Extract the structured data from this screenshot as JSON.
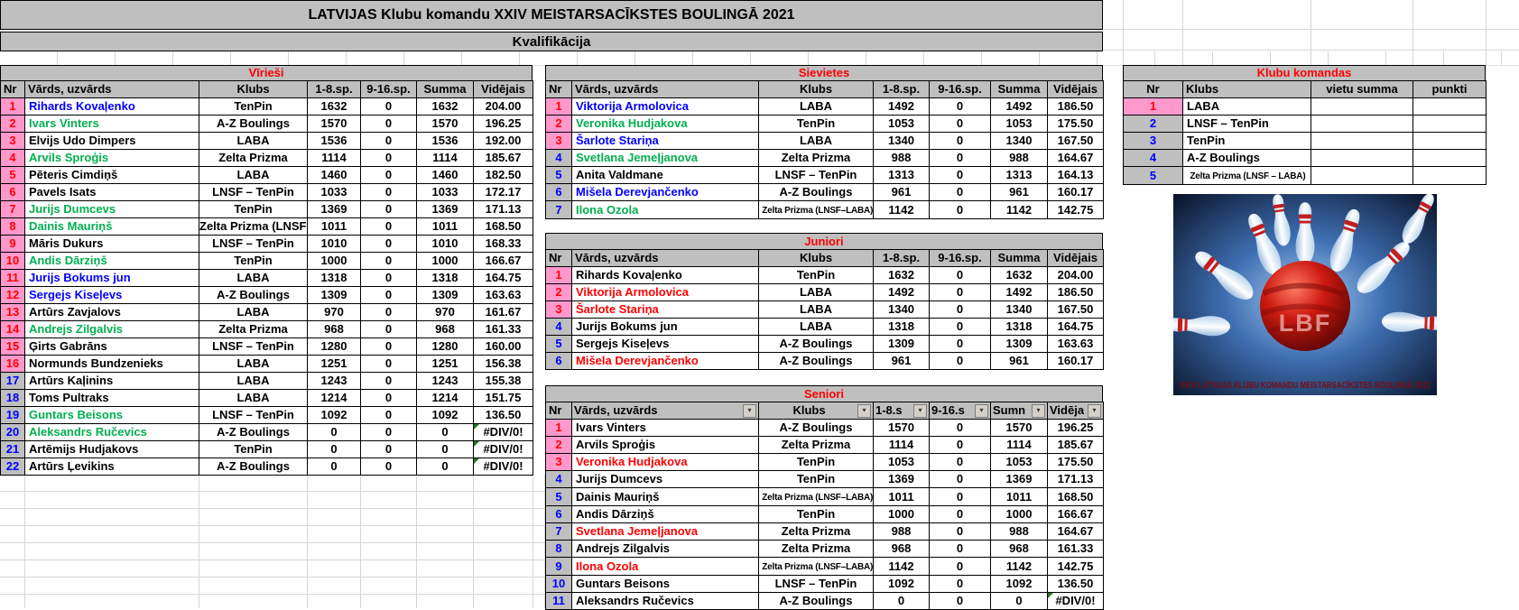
{
  "title1": "LATVIJAS Klubu komandu XXIV MEISTARSACĪKSTES BOULINGĀ 2021",
  "title2": "Kvalifikācija",
  "error_value": "#DIV/0!",
  "icons": {
    "filter_dropdown": "▾"
  },
  "colors": {
    "section_title_red": "#FF0000",
    "rank_pink": "#FF99CC",
    "rank_gray": "#BFBFBF",
    "name_blue": "#0000FF",
    "name_green": "#00B050",
    "name_red": "#FF0000",
    "header_gray": "#BFBFBF"
  },
  "headers": {
    "nr": "Nr",
    "name": "Vārds, uzvārds",
    "club": "Klubs",
    "sp1": "1-8.sp.",
    "sp2": "9-16.sp.",
    "sum": "Summa",
    "avg": "Vidējais"
  },
  "seniors_headers": {
    "nr": "Nr",
    "name": "Vārds, uzvārds",
    "club": "Klubs",
    "sp1": "1-8.s",
    "sp2": "9-16.s",
    "sum": "Sumn",
    "avg": "Vidēja"
  },
  "men": {
    "title": "Vīrieši",
    "rows": [
      {
        "nr": "1",
        "name": "Rihards Kovaļenko",
        "nc": "b",
        "club": "TenPin",
        "sp1": "1632",
        "sp2": "0",
        "sum": "1632",
        "avg": "204.00",
        "band": "p"
      },
      {
        "nr": "2",
        "name": "Ivars Vinters",
        "nc": "g",
        "club": "A-Z Boulings",
        "sp1": "1570",
        "sp2": "0",
        "sum": "1570",
        "avg": "196.25",
        "band": "p"
      },
      {
        "nr": "3",
        "name": "Elvijs Udo Dimpers",
        "nc": "k",
        "club": "LABA",
        "sp1": "1536",
        "sp2": "0",
        "sum": "1536",
        "avg": "192.00",
        "band": "p"
      },
      {
        "nr": "4",
        "name": "Arvils Sproģis",
        "nc": "g",
        "club": "Zelta Prizma",
        "sp1": "1114",
        "sp2": "0",
        "sum": "1114",
        "avg": "185.67",
        "band": "p"
      },
      {
        "nr": "5",
        "name": "Pēteris Cimdiņš",
        "nc": "k",
        "club": "LABA",
        "sp1": "1460",
        "sp2": "0",
        "sum": "1460",
        "avg": "182.50",
        "band": "p"
      },
      {
        "nr": "6",
        "name": "Pavels Isats",
        "nc": "k",
        "club": "LNSF – TenPin",
        "sp1": "1033",
        "sp2": "0",
        "sum": "1033",
        "avg": "172.17",
        "band": "p"
      },
      {
        "nr": "7",
        "name": "Jurijs Dumcevs",
        "nc": "g",
        "club": "TenPin",
        "sp1": "1369",
        "sp2": "0",
        "sum": "1369",
        "avg": "171.13",
        "band": "p"
      },
      {
        "nr": "8",
        "name": "Dainis Mauriņš",
        "nc": "g",
        "club": "Zelta Prizma (LNSF–LABA)",
        "sp1": "1011",
        "sp2": "0",
        "sum": "1011",
        "avg": "168.50",
        "band": "p"
      },
      {
        "nr": "9",
        "name": "Māris Dukurs",
        "nc": "k",
        "club": "LNSF – TenPin",
        "sp1": "1010",
        "sp2": "0",
        "sum": "1010",
        "avg": "168.33",
        "band": "p"
      },
      {
        "nr": "10",
        "name": "Andis Dārziņš",
        "nc": "g",
        "club": "TenPin",
        "sp1": "1000",
        "sp2": "0",
        "sum": "1000",
        "avg": "166.67",
        "band": "p"
      },
      {
        "nr": "11",
        "name": "Jurijs Bokums jun",
        "nc": "b",
        "club": "LABA",
        "sp1": "1318",
        "sp2": "0",
        "sum": "1318",
        "avg": "164.75",
        "band": "p"
      },
      {
        "nr": "12",
        "name": "Sergejs Kiseļevs",
        "nc": "b",
        "club": "A-Z Boulings",
        "sp1": "1309",
        "sp2": "0",
        "sum": "1309",
        "avg": "163.63",
        "band": "p"
      },
      {
        "nr": "13",
        "name": "Artūrs Zavjalovs",
        "nc": "k",
        "club": "LABA",
        "sp1": "970",
        "sp2": "0",
        "sum": "970",
        "avg": "161.67",
        "band": "p"
      },
      {
        "nr": "14",
        "name": "Andrejs Zilgalvis",
        "nc": "g",
        "club": "Zelta Prizma",
        "sp1": "968",
        "sp2": "0",
        "sum": "968",
        "avg": "161.33",
        "band": "p"
      },
      {
        "nr": "15",
        "name": "Ģirts Gabrāns",
        "nc": "k",
        "club": "LNSF – TenPin",
        "sp1": "1280",
        "sp2": "0",
        "sum": "1280",
        "avg": "160.00",
        "band": "p"
      },
      {
        "nr": "16",
        "name": "Normunds Bundzenieks",
        "nc": "k",
        "club": "LABA",
        "sp1": "1251",
        "sp2": "0",
        "sum": "1251",
        "avg": "156.38",
        "band": "p"
      },
      {
        "nr": "17",
        "name": "Artūrs Kaļinins",
        "nc": "k",
        "club": "LABA",
        "sp1": "1243",
        "sp2": "0",
        "sum": "1243",
        "avg": "155.38",
        "band": "y"
      },
      {
        "nr": "18",
        "name": "Toms Pultraks",
        "nc": "k",
        "club": "LABA",
        "sp1": "1214",
        "sp2": "0",
        "sum": "1214",
        "avg": "151.75",
        "band": "y"
      },
      {
        "nr": "19",
        "name": "Guntars Beisons",
        "nc": "g",
        "club": "LNSF – TenPin",
        "sp1": "1092",
        "sp2": "0",
        "sum": "1092",
        "avg": "136.50",
        "band": "y"
      },
      {
        "nr": "20",
        "name": "Aleksandrs Ručevics",
        "nc": "g",
        "club": "A-Z Boulings",
        "sp1": "0",
        "sp2": "0",
        "sum": "0",
        "avg": "#DIV/0!",
        "band": "y"
      },
      {
        "nr": "21",
        "name": "Artēmijs Hudjakovs",
        "nc": "k",
        "club": "TenPin",
        "sp1": "0",
        "sp2": "0",
        "sum": "0",
        "avg": "#DIV/0!",
        "band": "y"
      },
      {
        "nr": "22",
        "name": "Artūrs Ļevikins",
        "nc": "k",
        "club": "A-Z Boulings",
        "sp1": "0",
        "sp2": "0",
        "sum": "0",
        "avg": "#DIV/0!",
        "band": "y"
      }
    ]
  },
  "women": {
    "title": "Sievietes",
    "rows": [
      {
        "nr": "1",
        "name": "Viktorija Armolovica",
        "nc": "b",
        "club": "LABA",
        "sp1": "1492",
        "sp2": "0",
        "sum": "1492",
        "avg": "186.50",
        "band": "p"
      },
      {
        "nr": "2",
        "name": "Veronika Hudjakova",
        "nc": "g",
        "club": "TenPin",
        "sp1": "1053",
        "sp2": "0",
        "sum": "1053",
        "avg": "175.50",
        "band": "p"
      },
      {
        "nr": "3",
        "name": "Šarlote Stariņa",
        "nc": "b",
        "club": "LABA",
        "sp1": "1340",
        "sp2": "0",
        "sum": "1340",
        "avg": "167.50",
        "band": "p"
      },
      {
        "nr": "4",
        "name": "Svetlana Jemeļjanova",
        "nc": "g",
        "club": "Zelta Prizma",
        "sp1": "988",
        "sp2": "0",
        "sum": "988",
        "avg": "164.67",
        "band": "y"
      },
      {
        "nr": "5",
        "name": "Anita Valdmane",
        "nc": "k",
        "club": "LNSF – TenPin",
        "sp1": "1313",
        "sp2": "0",
        "sum": "1313",
        "avg": "164.13",
        "band": "y"
      },
      {
        "nr": "6",
        "name": "Mišela Derevjančenko",
        "nc": "b",
        "club": "A-Z Boulings",
        "sp1": "961",
        "sp2": "0",
        "sum": "961",
        "avg": "160.17",
        "band": "y"
      },
      {
        "nr": "7",
        "name": "Ilona Ozola",
        "nc": "g",
        "club": "Zelta Prizma (LNSF–LABA)",
        "sp1": "1142",
        "sp2": "0",
        "sum": "1142",
        "avg": "142.75",
        "band": "y"
      }
    ]
  },
  "juniors": {
    "title": "Juniori",
    "rows": [
      {
        "nr": "1",
        "name": "Rihards Kovaļenko",
        "nc": "k",
        "club": "TenPin",
        "sp1": "1632",
        "sp2": "0",
        "sum": "1632",
        "avg": "204.00",
        "band": "p"
      },
      {
        "nr": "2",
        "name": "Viktorija Armolovica",
        "nc": "r",
        "club": "LABA",
        "sp1": "1492",
        "sp2": "0",
        "sum": "1492",
        "avg": "186.50",
        "band": "p"
      },
      {
        "nr": "3",
        "name": "Šarlote Stariņa",
        "nc": "r",
        "club": "LABA",
        "sp1": "1340",
        "sp2": "0",
        "sum": "1340",
        "avg": "167.50",
        "band": "p"
      },
      {
        "nr": "4",
        "name": "Jurijs Bokums jun",
        "nc": "k",
        "club": "LABA",
        "sp1": "1318",
        "sp2": "0",
        "sum": "1318",
        "avg": "164.75",
        "band": "y"
      },
      {
        "nr": "5",
        "name": "Sergejs Kiseļevs",
        "nc": "k",
        "club": "A-Z Boulings",
        "sp1": "1309",
        "sp2": "0",
        "sum": "1309",
        "avg": "163.63",
        "band": "y"
      },
      {
        "nr": "6",
        "name": "Mišela Derevjančenko",
        "nc": "r",
        "club": "A-Z Boulings",
        "sp1": "961",
        "sp2": "0",
        "sum": "961",
        "avg": "160.17",
        "band": "y"
      }
    ]
  },
  "seniors": {
    "title": "Seniori",
    "rows": [
      {
        "nr": "1",
        "name": "Ivars Vinters",
        "nc": "k",
        "club": "A-Z Boulings",
        "sp1": "1570",
        "sp2": "0",
        "sum": "1570",
        "avg": "196.25",
        "band": "p"
      },
      {
        "nr": "2",
        "name": "Arvils Sproģis",
        "nc": "k",
        "club": "Zelta Prizma",
        "sp1": "1114",
        "sp2": "0",
        "sum": "1114",
        "avg": "185.67",
        "band": "p"
      },
      {
        "nr": "3",
        "name": "Veronika Hudjakova",
        "nc": "r",
        "club": "TenPin",
        "sp1": "1053",
        "sp2": "0",
        "sum": "1053",
        "avg": "175.50",
        "band": "p"
      },
      {
        "nr": "4",
        "name": "Jurijs Dumcevs",
        "nc": "k",
        "club": "TenPin",
        "sp1": "1369",
        "sp2": "0",
        "sum": "1369",
        "avg": "171.13",
        "band": "y"
      },
      {
        "nr": "5",
        "name": "Dainis Mauriņš",
        "nc": "k",
        "club": "Zelta Prizma (LNSF–LABA)",
        "sp1": "1011",
        "sp2": "0",
        "sum": "1011",
        "avg": "168.50",
        "band": "y"
      },
      {
        "nr": "6",
        "name": "Andis Dārziņš",
        "nc": "k",
        "club": "TenPin",
        "sp1": "1000",
        "sp2": "0",
        "sum": "1000",
        "avg": "166.67",
        "band": "y"
      },
      {
        "nr": "7",
        "name": "Svetlana Jemeļjanova",
        "nc": "r",
        "club": "Zelta Prizma",
        "sp1": "988",
        "sp2": "0",
        "sum": "988",
        "avg": "164.67",
        "band": "y"
      },
      {
        "nr": "8",
        "name": "Andrejs Zilgalvis",
        "nc": "k",
        "club": "Zelta Prizma",
        "sp1": "968",
        "sp2": "0",
        "sum": "968",
        "avg": "161.33",
        "band": "y"
      },
      {
        "nr": "9",
        "name": "Ilona Ozola",
        "nc": "r",
        "club": "Zelta Prizma (LNSF–LABA)",
        "sp1": "1142",
        "sp2": "0",
        "sum": "1142",
        "avg": "142.75",
        "band": "y"
      },
      {
        "nr": "10",
        "name": "Guntars Beisons",
        "nc": "k",
        "club": "LNSF – TenPin",
        "sp1": "1092",
        "sp2": "0",
        "sum": "1092",
        "avg": "136.50",
        "band": "y"
      },
      {
        "nr": "11",
        "name": "Aleksandrs Ručevics",
        "nc": "k",
        "club": "A-Z Boulings",
        "sp1": "0",
        "sp2": "0",
        "sum": "0",
        "avg": "#DIV/0!",
        "band": "y"
      }
    ]
  },
  "clubs": {
    "title": "Klubu komandas",
    "headers": {
      "nr": "Nr",
      "club": "Klubs",
      "spots": "vietu summa",
      "points": "punkti"
    },
    "rows": [
      {
        "nr": "1",
        "club": "LABA",
        "spots": "",
        "points": "",
        "band": "p"
      },
      {
        "nr": "2",
        "club": "LNSF – TenPin",
        "spots": "",
        "points": "",
        "band": "y"
      },
      {
        "nr": "3",
        "club": "TenPin",
        "spots": "",
        "points": "",
        "band": "y"
      },
      {
        "nr": "4",
        "club": "A-Z Boulings",
        "spots": "",
        "points": "",
        "band": "y"
      },
      {
        "nr": "5",
        "club": "Zelta Prizma (LNSF – LABA)",
        "spots": "",
        "points": "",
        "band": "y"
      }
    ]
  },
  "logo": {
    "text": "LBF",
    "caption": "XXIV LATVIJAS KLUBU KOMANDU MEISTARSACĪKSTES BOULINGĀ 2021"
  }
}
